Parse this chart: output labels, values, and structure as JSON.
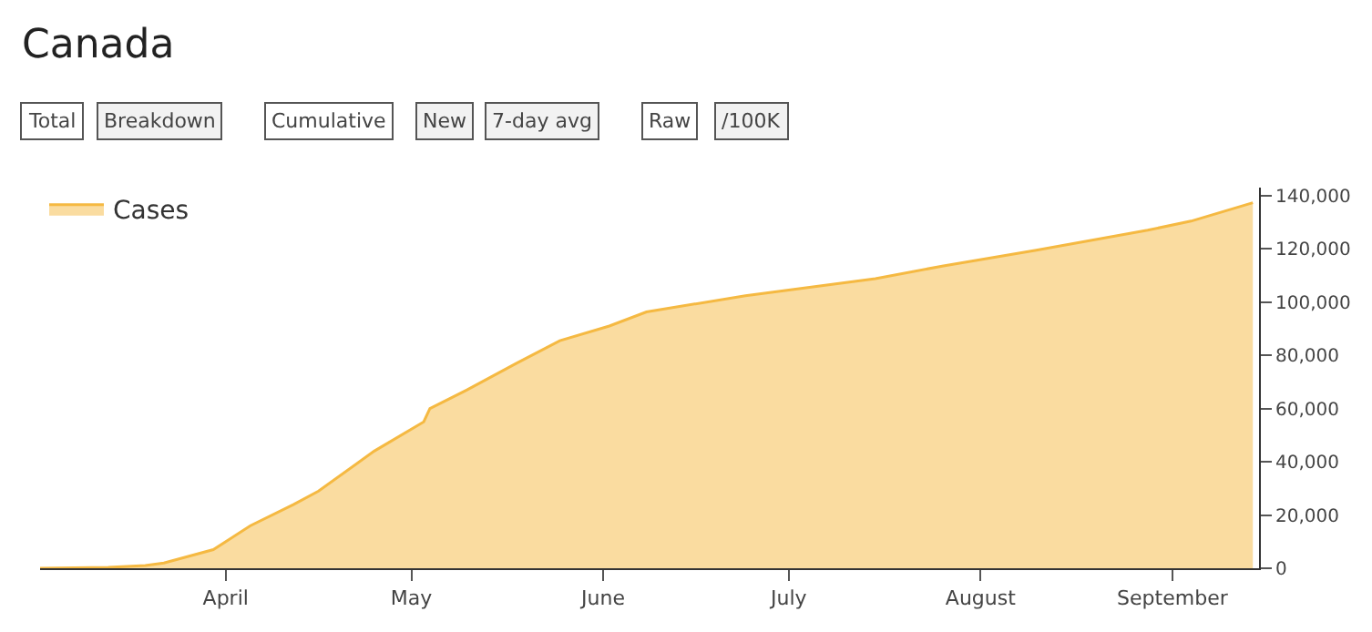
{
  "chart_data": {
    "type": "area",
    "title": "Canada",
    "annotations": [
      "Total",
      "Breakdown",
      "Cumulative",
      "New",
      "7-day avg",
      "Raw",
      "/100K"
    ],
    "x": [
      "--03-02",
      "--03-13",
      "--03-19",
      "--03-22",
      "--03-30",
      "--04-05",
      "--04-12",
      "--04-16",
      "--04-25",
      "--05-03",
      "--05-04",
      "--05-10",
      "--05-18",
      "--05-25",
      "--06-02",
      "--06-08",
      "--06-24",
      "--07-15",
      "--07-26",
      "--08-10",
      "--08-28",
      "--09-04",
      "--09-14"
    ],
    "series": [
      {
        "name": "Cases",
        "color": "#f5b942",
        "values": [
          0,
          300,
          1000,
          2000,
          7000,
          16000,
          24000,
          29000,
          44000,
          55000,
          60000,
          67000,
          77000,
          85500,
          91000,
          96300,
          102400,
          108800,
          113600,
          119500,
          127000,
          130400,
          137300
        ]
      }
    ],
    "xlim": [
      "--03-02",
      "--09-15"
    ],
    "xticks": [
      {
        "value": "--04-01",
        "label": "April"
      },
      {
        "value": "--05-01",
        "label": "May"
      },
      {
        "value": "--06-01",
        "label": "June"
      },
      {
        "value": "--07-01",
        "label": "July"
      },
      {
        "value": "--08-01",
        "label": "August"
      },
      {
        "value": "--09-01",
        "label": "September"
      }
    ],
    "ylim": [
      0,
      143000
    ],
    "yticks": [
      0,
      {
        "value": 20000,
        "label": "20,000"
      },
      {
        "value": 40000,
        "label": "40,000"
      },
      {
        "value": 60000,
        "label": "60,000"
      },
      {
        "value": 80000,
        "label": "80,000"
      },
      {
        "value": 100000,
        "label": "100,000"
      },
      {
        "value": 120000,
        "label": "120,000"
      },
      {
        "value": 140000,
        "label": "140,000"
      }
    ],
    "legend": "top left"
  }
}
